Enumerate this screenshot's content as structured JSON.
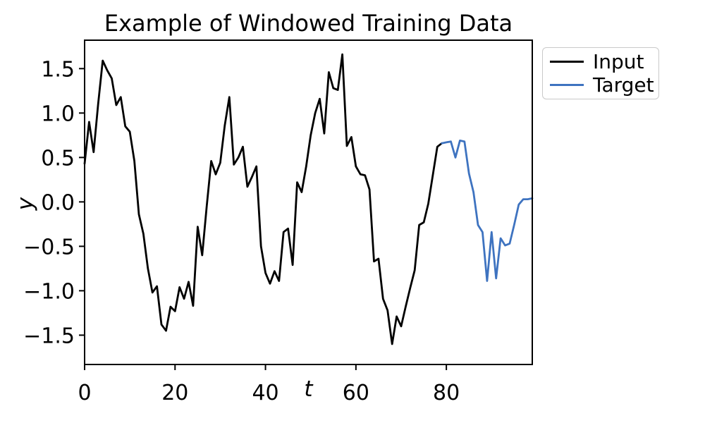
{
  "chart_data": {
    "type": "line",
    "title": "Example of Windowed Training Data",
    "xlabel": "t",
    "ylabel": "y",
    "xlim": [
      0,
      99
    ],
    "ylim": [
      -1.83,
      1.82
    ],
    "xticks": [
      0,
      20,
      40,
      60,
      80
    ],
    "yticks": [
      -1.5,
      -1.0,
      -0.5,
      0.0,
      0.5,
      1.0,
      1.5
    ],
    "grid": false,
    "legend": {
      "position": "outside-upper-right",
      "entries": [
        "Input",
        "Target"
      ]
    },
    "series": [
      {
        "name": "Input",
        "color": "#000000",
        "x_start": 0,
        "values": [
          0.43,
          0.9,
          0.56,
          1.1,
          1.59,
          1.48,
          1.39,
          1.09,
          1.18,
          0.85,
          0.79,
          0.46,
          -0.14,
          -0.36,
          -0.75,
          -1.02,
          -0.95,
          -1.38,
          -1.45,
          -1.18,
          -1.23,
          -0.96,
          -1.09,
          -0.9,
          -1.17,
          -0.28,
          -0.6,
          -0.05,
          0.46,
          0.31,
          0.44,
          0.86,
          1.18,
          0.42,
          0.5,
          0.62,
          0.17,
          0.28,
          0.4,
          -0.5,
          -0.8,
          -0.92,
          -0.78,
          -0.89,
          -0.34,
          -0.3,
          -0.71,
          0.22,
          0.11,
          0.4,
          0.75,
          1.0,
          1.16,
          0.77,
          1.46,
          1.28,
          1.26,
          1.66,
          0.63,
          0.73,
          0.4,
          0.31,
          0.3,
          0.14,
          -0.67,
          -0.64,
          -1.09,
          -1.22,
          -1.6,
          -1.29,
          -1.4,
          -1.18,
          -0.97,
          -0.77,
          -0.26,
          -0.23,
          -0.02,
          0.3,
          0.62,
          0.66
        ]
      },
      {
        "name": "Target",
        "color": "#3e73c0",
        "x_start": 79,
        "values": [
          0.66,
          0.67,
          0.68,
          0.5,
          0.69,
          0.68,
          0.32,
          0.11,
          -0.26,
          -0.34,
          -0.89,
          -0.34,
          -0.86,
          -0.41,
          -0.49,
          -0.47,
          -0.26,
          -0.03,
          0.03,
          0.03,
          0.04
        ]
      }
    ]
  }
}
